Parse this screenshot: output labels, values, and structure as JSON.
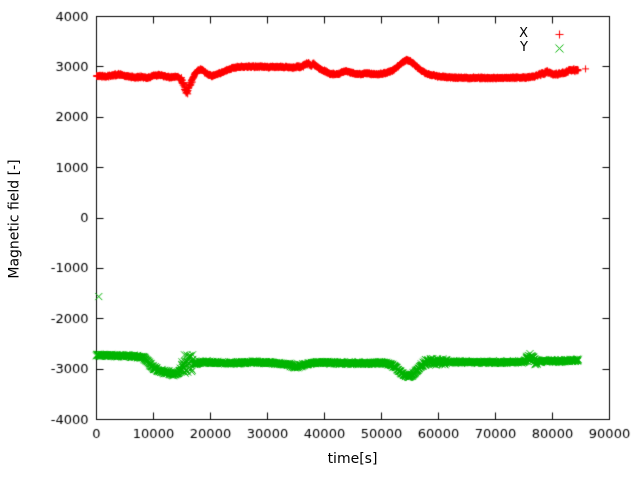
{
  "chart_data": {
    "type": "scatter",
    "title": "",
    "xlabel": "time[s]",
    "ylabel": "Magnetic field [-]",
    "xlim": [
      0,
      90000
    ],
    "ylim": [
      -4000,
      4000
    ],
    "xticks": [
      0,
      10000,
      20000,
      30000,
      40000,
      50000,
      60000,
      70000,
      80000,
      90000
    ],
    "yticks": [
      -4000,
      -3000,
      -2000,
      -1000,
      0,
      1000,
      2000,
      3000,
      4000
    ],
    "grid": false,
    "legend_position": "top-right-inside",
    "sample_step": 50,
    "t_end": 84500,
    "series": [
      {
        "name": "X",
        "marker": "plus",
        "color": "#ff0000",
        "base_noise": 22,
        "keypoints": [
          [
            0,
            2820
          ],
          [
            1500,
            2805
          ],
          [
            3000,
            2840
          ],
          [
            4000,
            2850
          ],
          [
            5000,
            2820
          ],
          [
            6500,
            2795
          ],
          [
            8000,
            2800
          ],
          [
            9000,
            2780
          ],
          [
            10000,
            2825
          ],
          [
            11000,
            2840
          ],
          [
            12000,
            2805
          ],
          [
            13000,
            2790
          ],
          [
            14000,
            2810
          ],
          [
            15000,
            2750
          ],
          [
            15600,
            2530
          ],
          [
            15900,
            2480
          ],
          [
            16300,
            2610
          ],
          [
            16700,
            2730
          ],
          [
            17200,
            2850
          ],
          [
            17800,
            2930
          ],
          [
            18400,
            2950
          ],
          [
            19000,
            2900
          ],
          [
            19600,
            2845
          ],
          [
            20200,
            2820
          ],
          [
            21000,
            2850
          ],
          [
            22000,
            2890
          ],
          [
            23000,
            2940
          ],
          [
            24000,
            2980
          ],
          [
            25000,
            3000
          ],
          [
            27000,
            3005
          ],
          [
            30000,
            3000
          ],
          [
            32500,
            3000
          ],
          [
            33500,
            2990
          ],
          [
            34500,
            2985
          ],
          [
            35200,
            3005
          ],
          [
            36000,
            3000
          ],
          [
            36600,
            3045
          ],
          [
            37100,
            3075
          ],
          [
            37600,
            3030
          ],
          [
            38100,
            3060
          ],
          [
            38600,
            3010
          ],
          [
            39200,
            2960
          ],
          [
            40000,
            2915
          ],
          [
            40600,
            2875
          ],
          [
            41500,
            2855
          ],
          [
            42500,
            2865
          ],
          [
            43200,
            2900
          ],
          [
            43800,
            2915
          ],
          [
            44500,
            2890
          ],
          [
            45500,
            2860
          ],
          [
            46500,
            2855
          ],
          [
            47300,
            2880
          ],
          [
            48200,
            2860
          ],
          [
            49000,
            2850
          ],
          [
            50000,
            2860
          ],
          [
            51000,
            2890
          ],
          [
            52000,
            2930
          ],
          [
            52600,
            2980
          ],
          [
            53200,
            3045
          ],
          [
            53800,
            3100
          ],
          [
            54400,
            3135
          ],
          [
            55000,
            3115
          ],
          [
            55600,
            3060
          ],
          [
            56200,
            3000
          ],
          [
            56800,
            2945
          ],
          [
            57400,
            2895
          ],
          [
            58000,
            2860
          ],
          [
            59000,
            2835
          ],
          [
            60000,
            2810
          ],
          [
            61500,
            2795
          ],
          [
            63000,
            2785
          ],
          [
            65000,
            2780
          ],
          [
            68000,
            2780
          ],
          [
            71000,
            2780
          ],
          [
            74000,
            2785
          ],
          [
            75500,
            2790
          ],
          [
            76500,
            2805
          ],
          [
            77500,
            2830
          ],
          [
            78300,
            2865
          ],
          [
            79000,
            2905
          ],
          [
            79600,
            2885
          ],
          [
            80400,
            2855
          ],
          [
            81200,
            2855
          ],
          [
            82000,
            2880
          ],
          [
            82700,
            2915
          ],
          [
            83400,
            2940
          ],
          [
            84500,
            2930
          ]
        ],
        "noise_regions": [
          [
            0,
            5000,
            28
          ],
          [
            14900,
            17000,
            70
          ],
          [
            35500,
            39500,
            30
          ],
          [
            39800,
            42000,
            30
          ],
          [
            52000,
            56500,
            25
          ],
          [
            77500,
            84500,
            35
          ]
        ],
        "outliers": [
          [
            85800,
            2960
          ]
        ]
      },
      {
        "name": "Y",
        "marker": "cross",
        "color": "#00b400",
        "base_noise": 30,
        "keypoints": [
          [
            0,
            -2720
          ],
          [
            1500,
            -2725
          ],
          [
            3000,
            -2725
          ],
          [
            4500,
            -2735
          ],
          [
            6000,
            -2745
          ],
          [
            7500,
            -2755
          ],
          [
            8300,
            -2775
          ],
          [
            9000,
            -2845
          ],
          [
            9600,
            -2925
          ],
          [
            10200,
            -2985
          ],
          [
            10800,
            -3020
          ],
          [
            11500,
            -3045
          ],
          [
            12200,
            -3060
          ],
          [
            13000,
            -3080
          ],
          [
            13600,
            -3100
          ],
          [
            14200,
            -3080
          ],
          [
            14800,
            -3010
          ],
          [
            15400,
            -2930
          ],
          [
            16000,
            -2870
          ],
          [
            16600,
            -2880
          ],
          [
            17300,
            -2890
          ],
          [
            18200,
            -2865
          ],
          [
            19200,
            -2855
          ],
          [
            20200,
            -2870
          ],
          [
            21500,
            -2870
          ],
          [
            23000,
            -2880
          ],
          [
            24500,
            -2878
          ],
          [
            26000,
            -2870
          ],
          [
            27500,
            -2862
          ],
          [
            29000,
            -2866
          ],
          [
            30500,
            -2874
          ],
          [
            32000,
            -2890
          ],
          [
            33200,
            -2902
          ],
          [
            34200,
            -2925
          ],
          [
            34800,
            -2952
          ],
          [
            35300,
            -2955
          ],
          [
            35900,
            -2935
          ],
          [
            36600,
            -2905
          ],
          [
            37500,
            -2885
          ],
          [
            38500,
            -2875
          ],
          [
            39500,
            -2868
          ],
          [
            40500,
            -2868
          ],
          [
            41500,
            -2873
          ],
          [
            42500,
            -2880
          ],
          [
            43500,
            -2882
          ],
          [
            44500,
            -2885
          ],
          [
            45500,
            -2880
          ],
          [
            46500,
            -2876
          ],
          [
            47500,
            -2882
          ],
          [
            48500,
            -2885
          ],
          [
            49500,
            -2878
          ],
          [
            50500,
            -2878
          ],
          [
            51300,
            -2895
          ],
          [
            51900,
            -2925
          ],
          [
            52400,
            -2965
          ],
          [
            52900,
            -3015
          ],
          [
            53400,
            -3065
          ],
          [
            53900,
            -3105
          ],
          [
            54400,
            -3135
          ],
          [
            54800,
            -3150
          ],
          [
            55300,
            -3125
          ],
          [
            55800,
            -3075
          ],
          [
            56300,
            -3015
          ],
          [
            56800,
            -2955
          ],
          [
            57300,
            -2905
          ],
          [
            57800,
            -2870
          ],
          [
            58400,
            -2852
          ],
          [
            59200,
            -2862
          ],
          [
            60000,
            -2855
          ],
          [
            61500,
            -2860
          ],
          [
            63000,
            -2863
          ],
          [
            64500,
            -2860
          ],
          [
            66000,
            -2868
          ],
          [
            67500,
            -2864
          ],
          [
            69000,
            -2862
          ],
          [
            70500,
            -2868
          ],
          [
            72000,
            -2862
          ],
          [
            73500,
            -2860
          ],
          [
            75000,
            -2856
          ],
          [
            75700,
            -2800
          ],
          [
            76100,
            -2725
          ],
          [
            76500,
            -2790
          ],
          [
            77000,
            -2840
          ],
          [
            78000,
            -2845
          ],
          [
            79500,
            -2838
          ],
          [
            81000,
            -2840
          ],
          [
            82500,
            -2840
          ],
          [
            83500,
            -2830
          ],
          [
            84500,
            -2820
          ]
        ],
        "noise_regions": [
          [
            9000,
            14800,
            45
          ],
          [
            14900,
            16900,
            280
          ],
          [
            33800,
            36200,
            45
          ],
          [
            57000,
            61500,
            75
          ],
          [
            58000,
            60500,
            80
          ],
          [
            75400,
            77300,
            100
          ]
        ],
        "outliers": [
          [
            400,
            -1560
          ]
        ]
      }
    ]
  }
}
